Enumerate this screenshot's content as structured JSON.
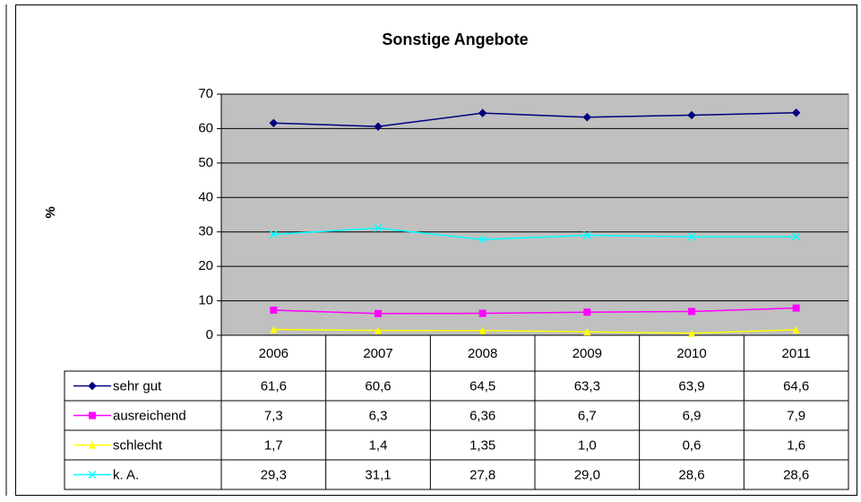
{
  "chart_data": {
    "type": "line",
    "title": "Sonstige Angebote",
    "y_label": "%",
    "categories": [
      "2006",
      "2007",
      "2008",
      "2009",
      "2010",
      "2011"
    ],
    "series": [
      {
        "name": "sehr gut",
        "color": "#000080",
        "marker": "diamond",
        "values": [
          61.6,
          60.6,
          64.5,
          63.3,
          63.9,
          64.6
        ],
        "value_labels": [
          "61,6",
          "60,6",
          "64,5",
          "63,3",
          "63,9",
          "64,6"
        ]
      },
      {
        "name": "ausreichend",
        "color": "#ff00ff",
        "marker": "square",
        "values": [
          7.3,
          6.3,
          6.36,
          6.7,
          6.9,
          7.9
        ],
        "value_labels": [
          "7,3",
          "6,3",
          "6,36",
          "6,7",
          "6,9",
          "7,9"
        ]
      },
      {
        "name": "schlecht",
        "color": "#ffff00",
        "marker": "triangle",
        "values": [
          1.7,
          1.4,
          1.35,
          1.0,
          0.6,
          1.6
        ],
        "value_labels": [
          "1,7",
          "1,4",
          "1,35",
          "1,0",
          "0,6",
          "1,6"
        ]
      },
      {
        "name": "k. A.",
        "color": "#00ffff",
        "marker": "x",
        "values": [
          29.3,
          31.1,
          27.8,
          29.0,
          28.6,
          28.6
        ],
        "value_labels": [
          "29,3",
          "31,1",
          "27,8",
          "29,0",
          "28,6",
          "28,6"
        ]
      }
    ],
    "ylim": [
      0,
      70
    ],
    "yticks": [
      0,
      10,
      20,
      30,
      40,
      50,
      60,
      70
    ],
    "grid": true,
    "plot_background": "#c0c0c0"
  }
}
